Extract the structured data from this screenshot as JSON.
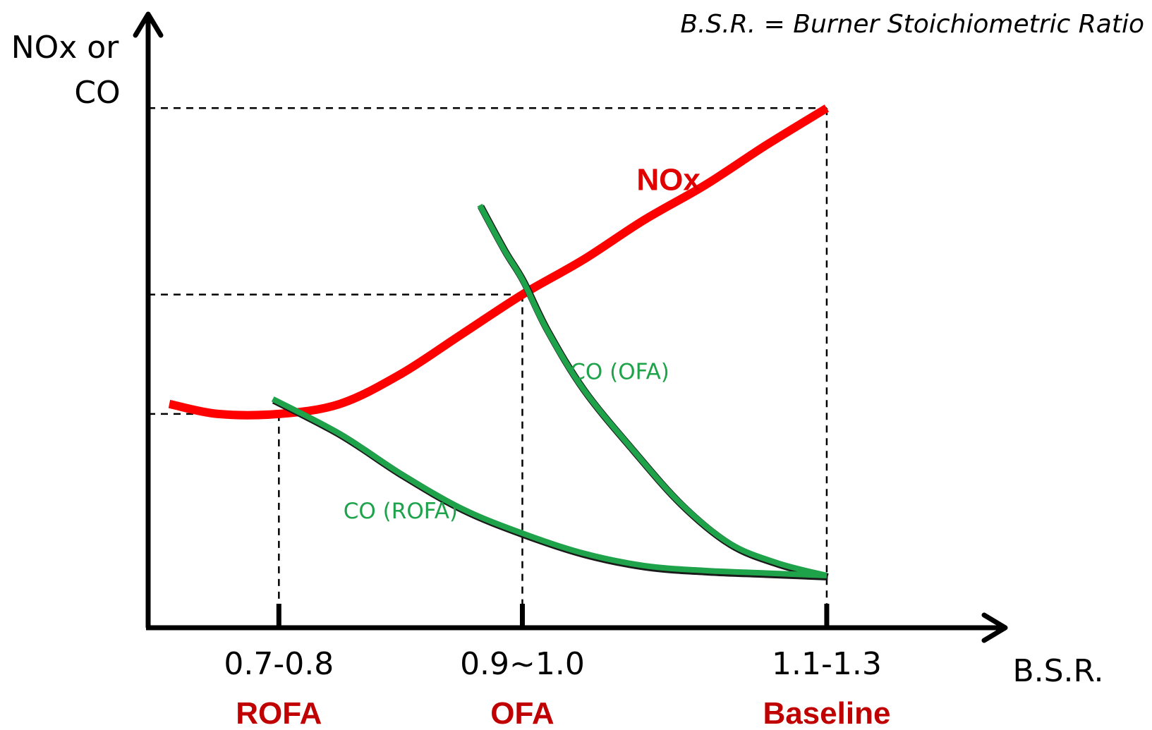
{
  "chart_data": {
    "type": "line",
    "note": "B.S.R. = Burner Stoichiometric Ratio",
    "ylabel": [
      "NOx or",
      "CO"
    ],
    "xlabel": "B.S.R.",
    "x_ticks": [
      {
        "x": 0.75,
        "label": "0.7-0.8",
        "category": "ROFA"
      },
      {
        "x": 0.95,
        "label": "0.9~1.0",
        "category": "OFA"
      },
      {
        "x": 1.2,
        "label": "1.1-1.3",
        "category": "Baseline"
      }
    ],
    "xlim": [
      0.66,
      1.28
    ],
    "ylim": [
      0,
      100
    ],
    "series": [
      {
        "name": "NOx",
        "color": "#ff0000",
        "points": [
          [
            0.66,
            45
          ],
          [
            0.7,
            43
          ],
          [
            0.75,
            43
          ],
          [
            0.8,
            45
          ],
          [
            0.85,
            51
          ],
          [
            0.9,
            59
          ],
          [
            0.95,
            67
          ],
          [
            1.0,
            74
          ],
          [
            1.05,
            82
          ],
          [
            1.1,
            89
          ],
          [
            1.15,
            97
          ],
          [
            1.2,
            104.5
          ]
        ]
      },
      {
        "name": "CO (OFA)",
        "color": "#1ea34a",
        "points": [
          [
            0.915,
            85
          ],
          [
            0.935,
            76
          ],
          [
            0.95,
            70
          ],
          [
            0.97,
            60
          ],
          [
            1.0,
            48
          ],
          [
            1.04,
            36
          ],
          [
            1.08,
            25
          ],
          [
            1.12,
            17
          ],
          [
            1.16,
            13
          ],
          [
            1.2,
            10.5
          ]
        ]
      },
      {
        "name": "CO (ROFA)",
        "color": "#1ea34a",
        "points": [
          [
            0.745,
            46
          ],
          [
            0.8,
            39
          ],
          [
            0.85,
            31
          ],
          [
            0.9,
            24
          ],
          [
            0.95,
            19
          ],
          [
            1.0,
            15
          ],
          [
            1.05,
            12.5
          ],
          [
            1.1,
            11.5
          ],
          [
            1.15,
            11
          ],
          [
            1.2,
            10.5
          ]
        ]
      }
    ],
    "guides": [
      {
        "x": 0.75,
        "y": 43
      },
      {
        "x": 0.95,
        "y": 67
      },
      {
        "x": 1.2,
        "y": 104.5
      }
    ],
    "series_labels": {
      "NOx": {
        "x": 1.07,
        "y": 88
      },
      "CO (OFA)": {
        "x": 1.03,
        "y": 50
      },
      "CO (ROFA)": {
        "x": 0.85,
        "y": 22
      }
    }
  }
}
